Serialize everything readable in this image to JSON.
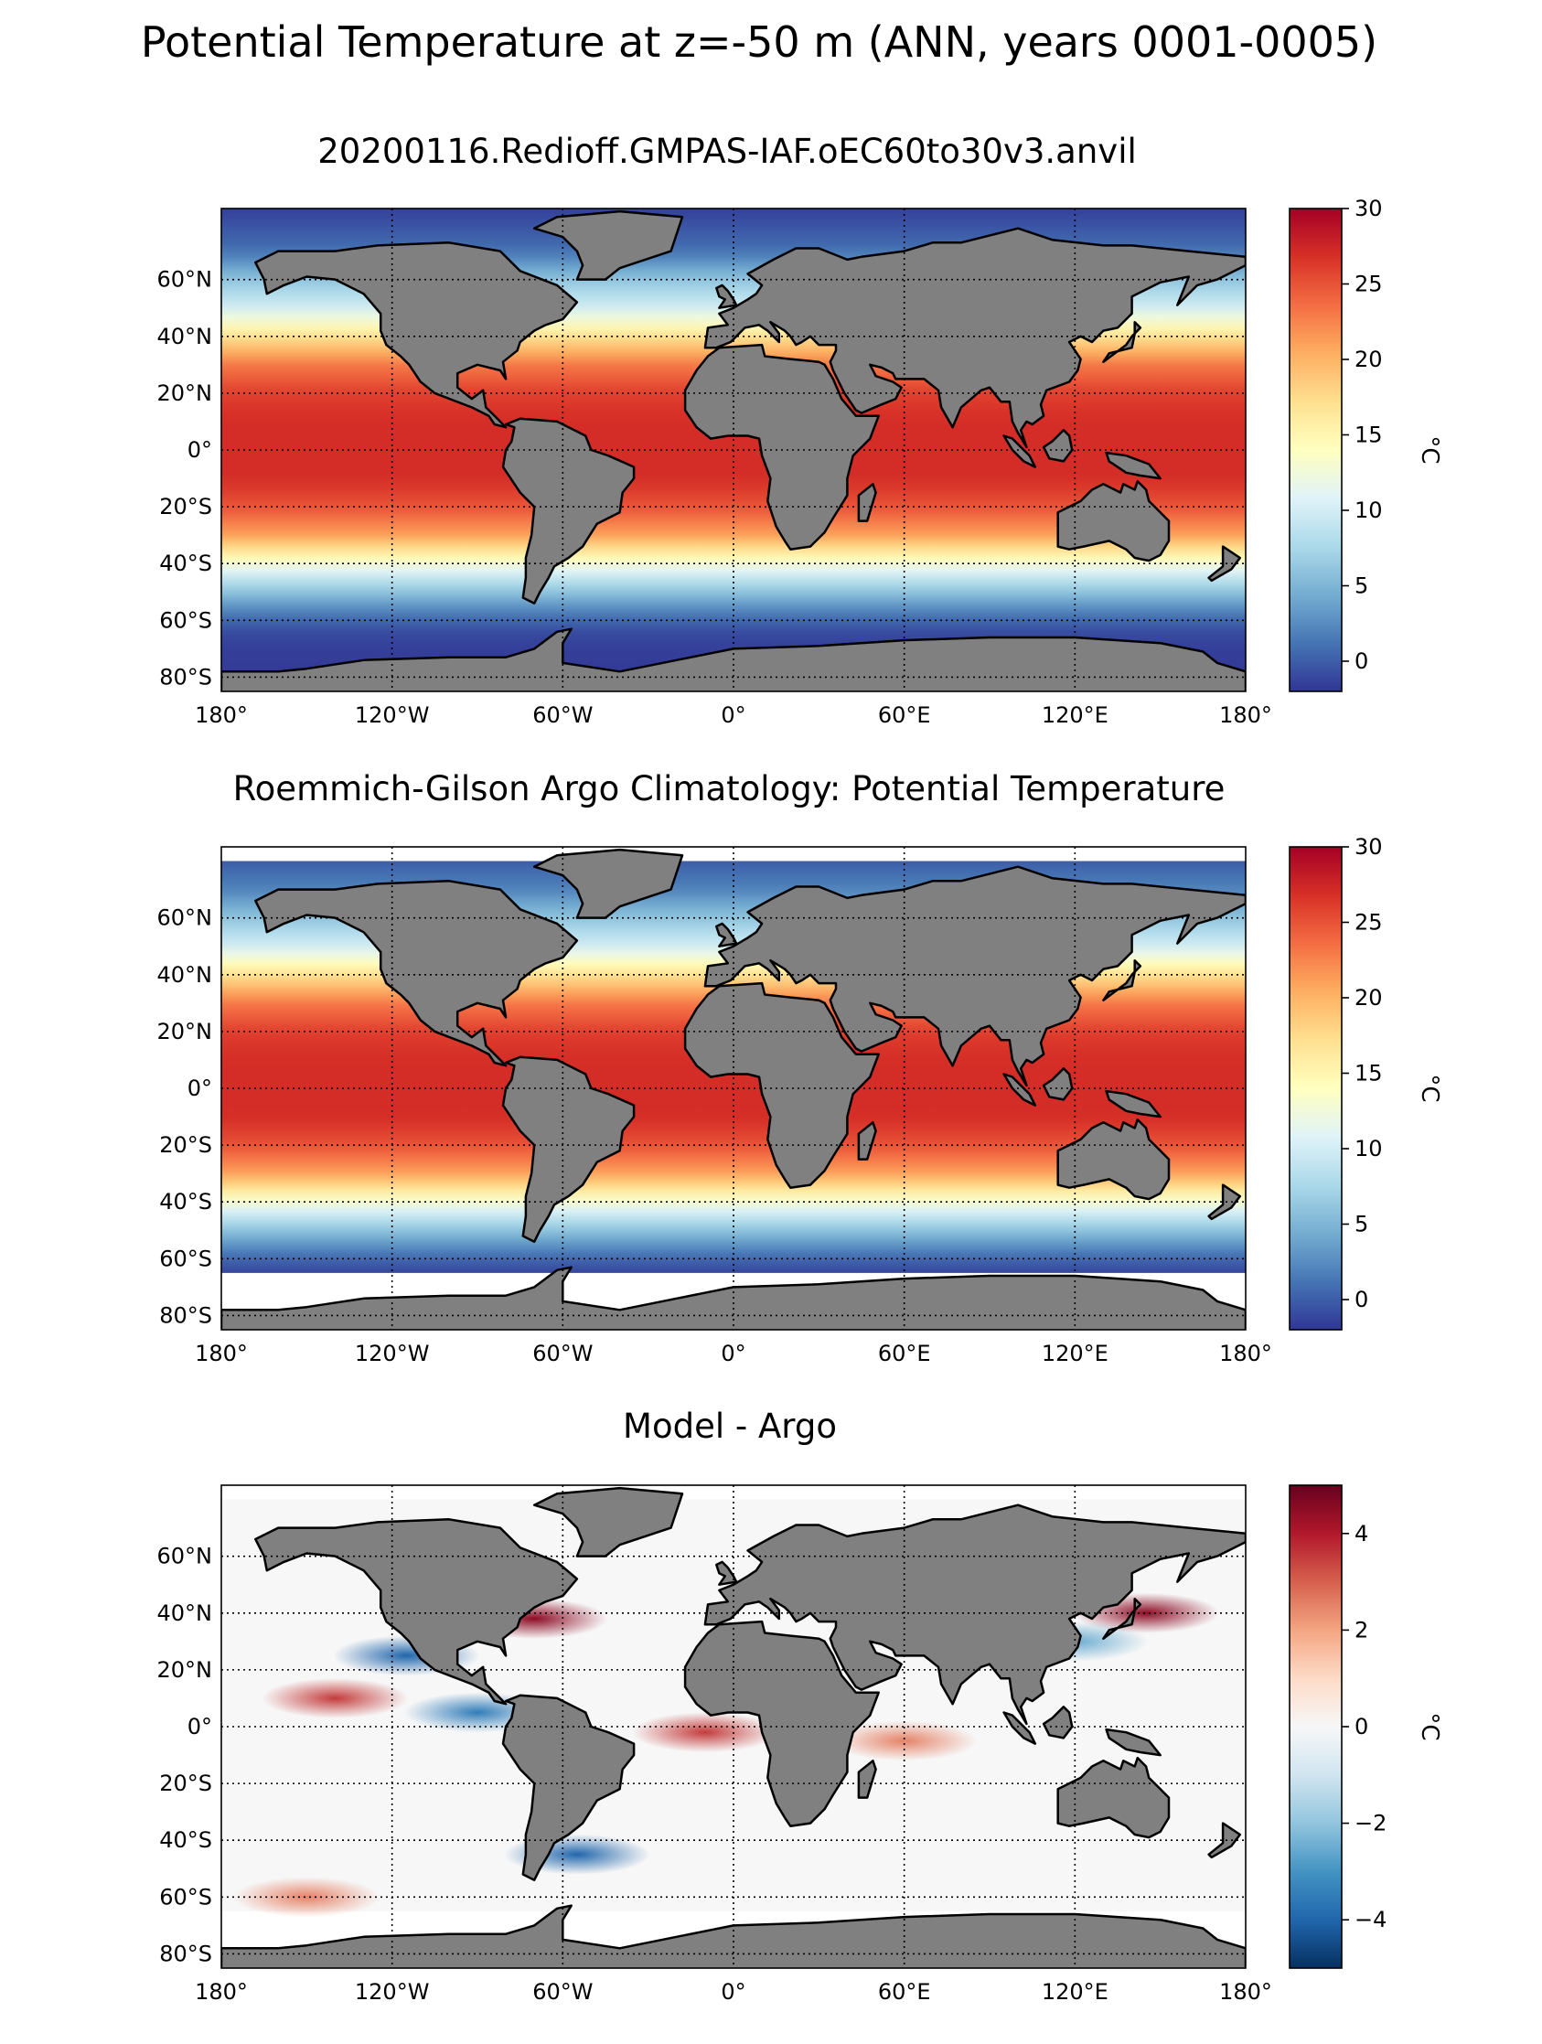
{
  "suptitle": "Potential Temperature at z=-50 m (ANN, years 0001-0005)",
  "x_tick_labels": [
    "180°",
    "120°W",
    "60°W",
    "0°",
    "60°E",
    "120°E",
    "180°"
  ],
  "x_tick_values": [
    -180,
    -120,
    -60,
    0,
    60,
    120,
    180
  ],
  "y_tick_labels": [
    "60°N",
    "40°N",
    "20°N",
    "0°",
    "20°S",
    "40°S",
    "60°S",
    "80°S"
  ],
  "y_tick_values": [
    60,
    40,
    20,
    0,
    -20,
    -40,
    -60,
    -80
  ],
  "colors": {
    "land": "#808080",
    "missing": "#ffffff",
    "coast": "#000000",
    "grid": "#000000"
  },
  "chart_data": [
    {
      "type": "heatmap",
      "projection": "plate-carree",
      "title": "20200116.Redioff.GMPAS-IAF.oEC60to30v3.anvil",
      "xlim": [
        -180,
        180
      ],
      "ylim": [
        -85,
        85
      ],
      "grid": true,
      "colormap": "RdYlBu_r",
      "colorbar": {
        "label": "°C",
        "range": [
          -2,
          30
        ],
        "ticks": [
          0,
          5,
          10,
          15,
          20,
          25,
          30
        ],
        "tick_labels": [
          "0",
          "5",
          "10",
          "15",
          "20",
          "25",
          "30"
        ]
      },
      "zonal_profile": {
        "lat": [
          -85,
          -78,
          -70,
          -65,
          -60,
          -55,
          -50,
          -45,
          -40,
          -35,
          -30,
          -20,
          -10,
          0,
          10,
          20,
          30,
          40,
          50,
          60,
          70,
          85
        ],
        "value": [
          -1.8,
          -1.8,
          -1.5,
          -1.2,
          0.5,
          3,
          6,
          9,
          13,
          17,
          21,
          25,
          27,
          27,
          27,
          26,
          23,
          17,
          10,
          6,
          1,
          -1.5
        ]
      }
    },
    {
      "type": "heatmap",
      "projection": "plate-carree",
      "title": "Roemmich-Gilson Argo Climatology: Potential Temperature",
      "xlim": [
        -180,
        180
      ],
      "ylim": [
        -85,
        85
      ],
      "grid": true,
      "colormap": "RdYlBu_r",
      "colorbar": {
        "label": "°C",
        "range": [
          -2,
          30
        ],
        "ticks": [
          0,
          5,
          10,
          15,
          20,
          25,
          30
        ],
        "tick_labels": [
          "0",
          "5",
          "10",
          "15",
          "20",
          "25",
          "30"
        ]
      },
      "data_lat_range": [
        -65,
        80
      ],
      "zonal_profile": {
        "lat": [
          -65,
          -60,
          -55,
          -50,
          -45,
          -40,
          -35,
          -30,
          -20,
          -10,
          0,
          10,
          20,
          30,
          40,
          50,
          60,
          70,
          80
        ],
        "value": [
          -1.2,
          0.5,
          3,
          6,
          9,
          13,
          17,
          21,
          25,
          27,
          27,
          27,
          26,
          23,
          17,
          10,
          6,
          2,
          0
        ]
      }
    },
    {
      "type": "heatmap",
      "projection": "plate-carree",
      "title": "Model - Argo",
      "xlim": [
        -180,
        180
      ],
      "ylim": [
        -85,
        85
      ],
      "grid": true,
      "colormap": "RdBu_r",
      "colorbar": {
        "label": "°C",
        "range": [
          -5,
          5
        ],
        "ticks": [
          -4,
          -2,
          0,
          2,
          4
        ],
        "tick_labels": [
          "−4",
          "−2",
          "0",
          "2",
          "4"
        ]
      },
      "data_lat_range": [
        -65,
        80
      ],
      "anomalies": [
        {
          "lon": -140,
          "lat": 10,
          "value": 3.5
        },
        {
          "lon": -70,
          "lat": 38,
          "value": 4.5
        },
        {
          "lon": 145,
          "lat": 40,
          "value": 4.5
        },
        {
          "lon": -10,
          "lat": -2,
          "value": 3.5
        },
        {
          "lon": 60,
          "lat": -5,
          "value": 2.5
        },
        {
          "lon": -55,
          "lat": -45,
          "value": -4
        },
        {
          "lon": -115,
          "lat": 25,
          "value": -4
        },
        {
          "lon": -90,
          "lat": 5,
          "value": -3.5
        },
        {
          "lon": -150,
          "lat": -60,
          "value": 2.5
        },
        {
          "lon": 120,
          "lat": 30,
          "value": -2.5
        }
      ]
    }
  ]
}
